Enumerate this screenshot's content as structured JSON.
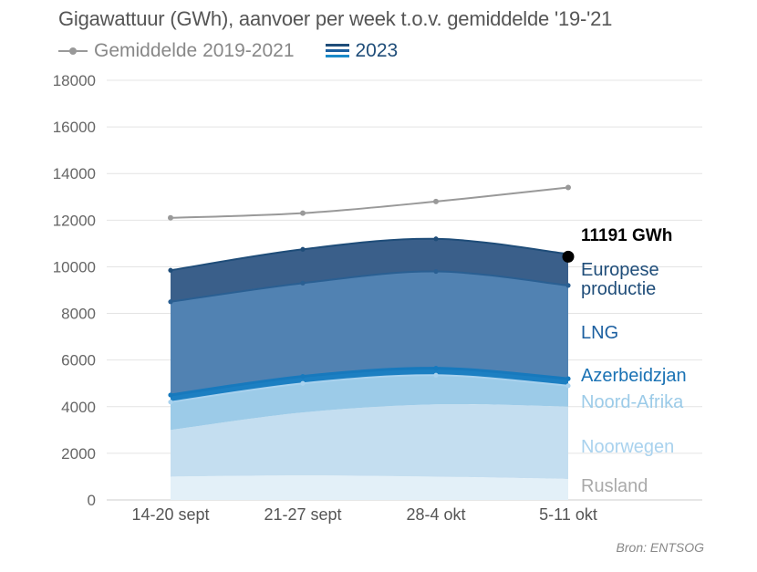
{
  "title": "Gigawattuur (GWh), aanvoer per week t.o.v. gemiddelde '19-'21",
  "legend": {
    "average_label": "Gemiddelde 2019-2021",
    "current_label": "2023"
  },
  "source": "Bron: ENTSOG",
  "colors": {
    "average": "#999999",
    "europese_productie": "#3a5f8a",
    "lng": "#5182b2",
    "azerbeidzjan": "#1c7fc2",
    "noord_afrika": "#9ccbe8",
    "noorwegen": "#c4def0",
    "rusland": "#e3f0f8"
  },
  "chart_data": {
    "type": "area",
    "stacked": true,
    "categories": [
      "14-20 sept",
      "21-27 sept",
      "28-4 okt",
      "5-11 okt"
    ],
    "ylim": [
      0,
      18000
    ],
    "yticks": [
      0,
      2000,
      4000,
      6000,
      8000,
      10000,
      12000,
      14000,
      16000,
      18000
    ],
    "grid": true,
    "average": {
      "name": "Gemiddelde 2019-2021",
      "values": [
        12100,
        12300,
        12800,
        13400
      ]
    },
    "series": [
      {
        "name": "Rusland",
        "values": [
          1000,
          1050,
          1000,
          900
        ]
      },
      {
        "name": "Noorwegen",
        "values": [
          2000,
          2700,
          3100,
          3100
        ]
      },
      {
        "name": "Noord-Afrika",
        "values": [
          1200,
          1250,
          1250,
          900
        ]
      },
      {
        "name": "Azerbeidzjan",
        "values": [
          300,
          300,
          300,
          300
        ]
      },
      {
        "name": "LNG",
        "values": [
          4000,
          4000,
          4150,
          4000
        ]
      },
      {
        "name": "Europese productie",
        "values": [
          1350,
          1450,
          1400,
          1350
        ]
      }
    ],
    "annotation": {
      "text": "11191 GWh"
    }
  }
}
